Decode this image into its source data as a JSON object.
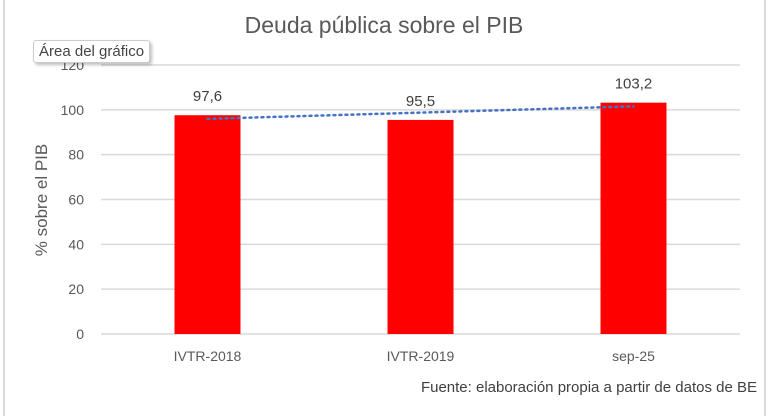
{
  "chart_data": {
    "type": "bar",
    "title": "Deuda pública sobre el PIB",
    "ylabel": "% sobre el PIB",
    "xlabel": "",
    "categories": [
      "IVTR-2018",
      "IVTR-2019",
      "sep-25"
    ],
    "values": [
      97.6,
      95.5,
      103.2
    ],
    "data_labels": [
      "97,6",
      "95,5",
      "103,2"
    ],
    "ylim": [
      0,
      120
    ],
    "yticks": [
      0,
      20,
      40,
      60,
      80,
      100,
      120
    ],
    "grid": true,
    "legend": "none",
    "trendline": {
      "type": "linear",
      "style": "dotted"
    },
    "colors": {
      "bar": "#ff0000",
      "trendline": "#4472c4",
      "grid": "#d9d9d9"
    },
    "source": "Fuente: elaboración propia a partir de datos de BE"
  },
  "tooltip": "Área del gráfico"
}
